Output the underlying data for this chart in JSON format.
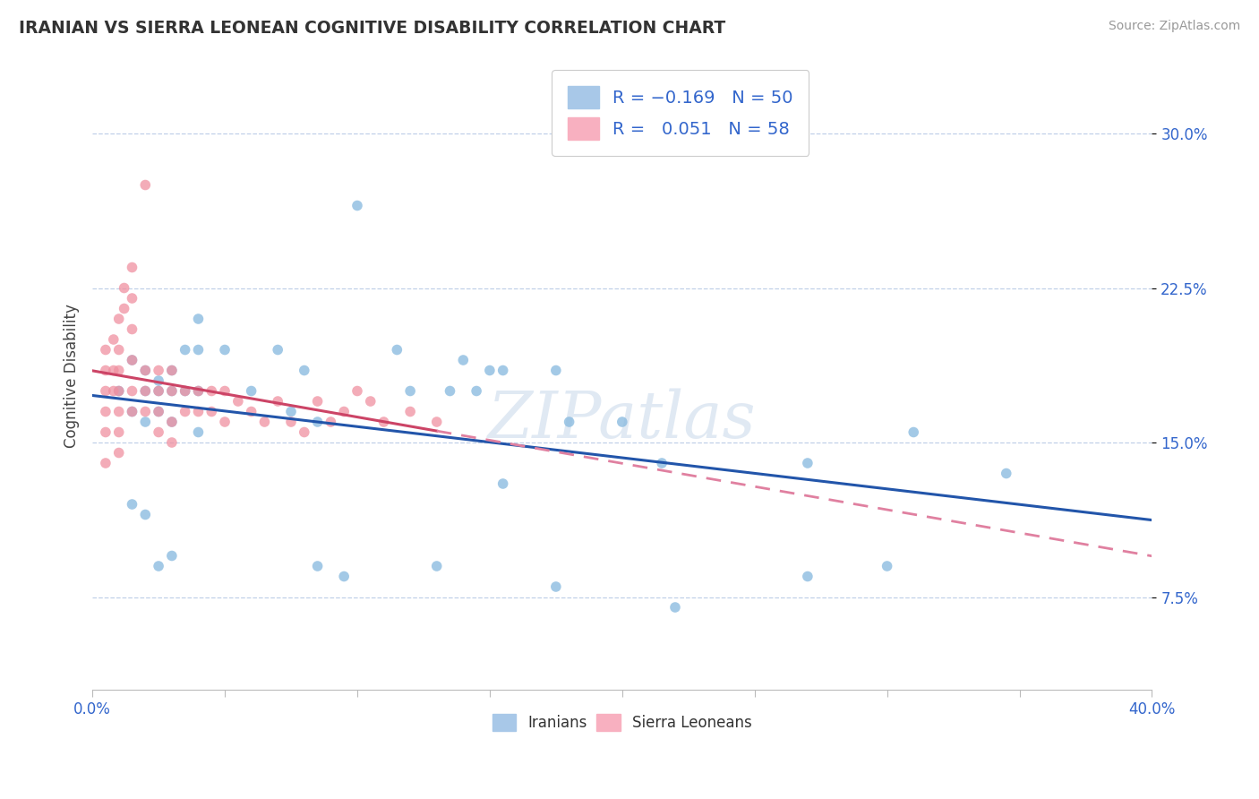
{
  "title": "IRANIAN VS SIERRA LEONEAN COGNITIVE DISABILITY CORRELATION CHART",
  "source": "Source: ZipAtlas.com",
  "ylabel": "Cognitive Disability",
  "xmin": 0.0,
  "xmax": 0.4,
  "ymin": 0.03,
  "ymax": 0.335,
  "yticks": [
    0.075,
    0.15,
    0.225,
    0.3
  ],
  "ytick_labels": [
    "7.5%",
    "15.0%",
    "22.5%",
    "30.0%"
  ],
  "iranian_color": "#85b8de",
  "sierra_color": "#f090a0",
  "trendline_iranian_color": "#2255aa",
  "trendline_sierra_color": "#cc4466",
  "trendline_sierra_ext_color": "#e080a0",
  "background_color": "#ffffff",
  "grid_color": "#c0d0e8",
  "watermark": "ZIPatlas",
  "iranians_points": [
    [
      0.01,
      0.175
    ],
    [
      0.015,
      0.19
    ],
    [
      0.015,
      0.165
    ],
    [
      0.02,
      0.185
    ],
    [
      0.02,
      0.175
    ],
    [
      0.02,
      0.16
    ],
    [
      0.025,
      0.18
    ],
    [
      0.025,
      0.175
    ],
    [
      0.025,
      0.165
    ],
    [
      0.03,
      0.185
    ],
    [
      0.03,
      0.175
    ],
    [
      0.03,
      0.16
    ],
    [
      0.035,
      0.195
    ],
    [
      0.035,
      0.175
    ],
    [
      0.04,
      0.21
    ],
    [
      0.04,
      0.195
    ],
    [
      0.04,
      0.175
    ],
    [
      0.05,
      0.195
    ],
    [
      0.06,
      0.175
    ],
    [
      0.07,
      0.195
    ],
    [
      0.075,
      0.165
    ],
    [
      0.08,
      0.185
    ],
    [
      0.085,
      0.16
    ],
    [
      0.1,
      0.265
    ],
    [
      0.115,
      0.195
    ],
    [
      0.12,
      0.175
    ],
    [
      0.135,
      0.175
    ],
    [
      0.14,
      0.19
    ],
    [
      0.145,
      0.175
    ],
    [
      0.15,
      0.185
    ],
    [
      0.155,
      0.185
    ],
    [
      0.175,
      0.185
    ],
    [
      0.18,
      0.16
    ],
    [
      0.2,
      0.16
    ],
    [
      0.215,
      0.14
    ],
    [
      0.31,
      0.155
    ],
    [
      0.345,
      0.135
    ],
    [
      0.015,
      0.12
    ],
    [
      0.02,
      0.115
    ],
    [
      0.025,
      0.09
    ],
    [
      0.03,
      0.095
    ],
    [
      0.04,
      0.155
    ],
    [
      0.085,
      0.09
    ],
    [
      0.095,
      0.085
    ],
    [
      0.13,
      0.09
    ],
    [
      0.175,
      0.08
    ],
    [
      0.22,
      0.07
    ],
    [
      0.27,
      0.085
    ],
    [
      0.3,
      0.09
    ],
    [
      0.155,
      0.13
    ],
    [
      0.27,
      0.14
    ]
  ],
  "sierra_points": [
    [
      0.005,
      0.195
    ],
    [
      0.005,
      0.185
    ],
    [
      0.005,
      0.175
    ],
    [
      0.005,
      0.165
    ],
    [
      0.005,
      0.155
    ],
    [
      0.008,
      0.2
    ],
    [
      0.008,
      0.185
    ],
    [
      0.008,
      0.175
    ],
    [
      0.01,
      0.21
    ],
    [
      0.01,
      0.195
    ],
    [
      0.01,
      0.185
    ],
    [
      0.01,
      0.175
    ],
    [
      0.01,
      0.165
    ],
    [
      0.01,
      0.155
    ],
    [
      0.012,
      0.225
    ],
    [
      0.012,
      0.215
    ],
    [
      0.015,
      0.235
    ],
    [
      0.015,
      0.22
    ],
    [
      0.015,
      0.205
    ],
    [
      0.015,
      0.19
    ],
    [
      0.015,
      0.175
    ],
    [
      0.015,
      0.165
    ],
    [
      0.02,
      0.275
    ],
    [
      0.02,
      0.185
    ],
    [
      0.02,
      0.175
    ],
    [
      0.02,
      0.165
    ],
    [
      0.025,
      0.185
    ],
    [
      0.025,
      0.175
    ],
    [
      0.025,
      0.165
    ],
    [
      0.025,
      0.155
    ],
    [
      0.03,
      0.185
    ],
    [
      0.03,
      0.175
    ],
    [
      0.03,
      0.16
    ],
    [
      0.03,
      0.15
    ],
    [
      0.035,
      0.175
    ],
    [
      0.035,
      0.165
    ],
    [
      0.04,
      0.175
    ],
    [
      0.04,
      0.165
    ],
    [
      0.045,
      0.175
    ],
    [
      0.045,
      0.165
    ],
    [
      0.05,
      0.175
    ],
    [
      0.05,
      0.16
    ],
    [
      0.055,
      0.17
    ],
    [
      0.06,
      0.165
    ],
    [
      0.065,
      0.16
    ],
    [
      0.07,
      0.17
    ],
    [
      0.075,
      0.16
    ],
    [
      0.08,
      0.155
    ],
    [
      0.085,
      0.17
    ],
    [
      0.09,
      0.16
    ],
    [
      0.095,
      0.165
    ],
    [
      0.1,
      0.175
    ],
    [
      0.105,
      0.17
    ],
    [
      0.11,
      0.16
    ],
    [
      0.12,
      0.165
    ],
    [
      0.13,
      0.16
    ],
    [
      0.005,
      0.14
    ],
    [
      0.01,
      0.145
    ]
  ]
}
